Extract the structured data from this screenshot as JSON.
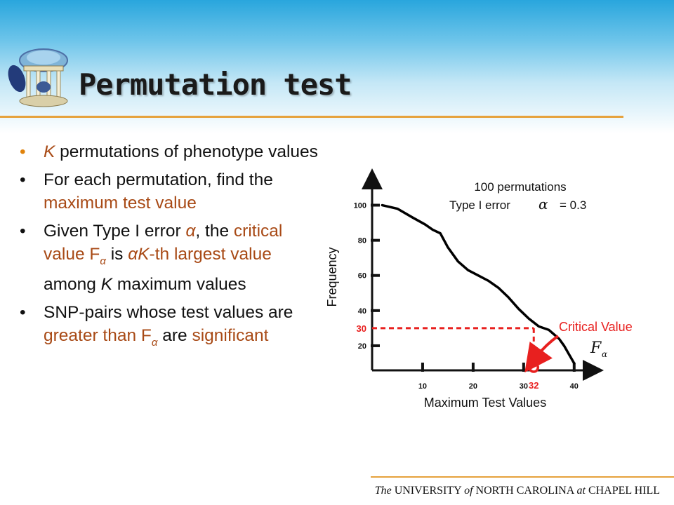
{
  "slide": {
    "title": "Permutation test"
  },
  "bullets": [
    {
      "parts": [
        {
          "t": "K",
          "cls": "hl it"
        },
        {
          "t": " permutations of phenotype values",
          "cls": ""
        }
      ]
    },
    {
      "parts": [
        {
          "t": "For each permutation, find the ",
          "cls": ""
        },
        {
          "t": "maximum test value",
          "cls": "hl"
        }
      ]
    },
    {
      "parts": [
        {
          "t": "Given Type I error ",
          "cls": ""
        },
        {
          "t": "α",
          "cls": "hl it"
        },
        {
          "t": ", the ",
          "cls": ""
        },
        {
          "t": "critical value F",
          "cls": "hl"
        },
        {
          "t": "α",
          "cls": "hl it",
          "sub": true
        },
        {
          "t": " is ",
          "cls": ""
        },
        {
          "t": "αK",
          "cls": "hl it"
        },
        {
          "t": "-th largest value",
          "cls": "hl"
        },
        {
          "t": " among ",
          "cls": ""
        },
        {
          "t": "K",
          "cls": "it"
        },
        {
          "t": " maximum values",
          "cls": ""
        }
      ]
    },
    {
      "parts": [
        {
          "t": "SNP-pairs whose test values are ",
          "cls": ""
        },
        {
          "t": "greater than F",
          "cls": "hl"
        },
        {
          "t": "α",
          "cls": "hl it",
          "sub": true
        },
        {
          "t": " are ",
          "cls": ""
        },
        {
          "t": "significant",
          "cls": "hl"
        }
      ]
    }
  ],
  "chart_data": {
    "type": "line",
    "title_lines": [
      "100 permutations",
      "Type I error",
      "= 0.3"
    ],
    "alpha_symbol": "α",
    "xlabel": "Maximum Test Values",
    "ylabel": "Frequency",
    "x_ticks": [
      10,
      20,
      30,
      40
    ],
    "y_ticks": [
      20,
      40,
      60,
      80,
      100
    ],
    "xlim": [
      0,
      41
    ],
    "ylim": [
      6,
      105
    ],
    "series": [
      {
        "x": [
          2,
          5,
          8,
          10.5,
          12,
          13.5,
          15,
          17,
          19,
          21,
          23,
          25,
          27,
          29,
          31,
          33,
          35,
          37,
          38,
          39,
          40
        ],
        "y": [
          100,
          98,
          93,
          89,
          86,
          84,
          76,
          68,
          63,
          60,
          57,
          53,
          47.5,
          41,
          35.5,
          31,
          29,
          24,
          20,
          15,
          10
        ]
      }
    ],
    "critical_point": {
      "x": 32,
      "y": 30
    },
    "critical_x_label": "32",
    "critical_y_label": "30",
    "annotation": "Critical Value",
    "annotation_symbol": "F",
    "annotation_sub": "α",
    "colors": {
      "highlight": "#e8201f",
      "line": "#000000"
    }
  },
  "footer": {
    "w1": "The",
    "w2": "UNIVERSITY",
    "w3": "of",
    "w4": "NORTH CAROLINA",
    "w5": "at",
    "w6": "CHAPEL HILL"
  }
}
